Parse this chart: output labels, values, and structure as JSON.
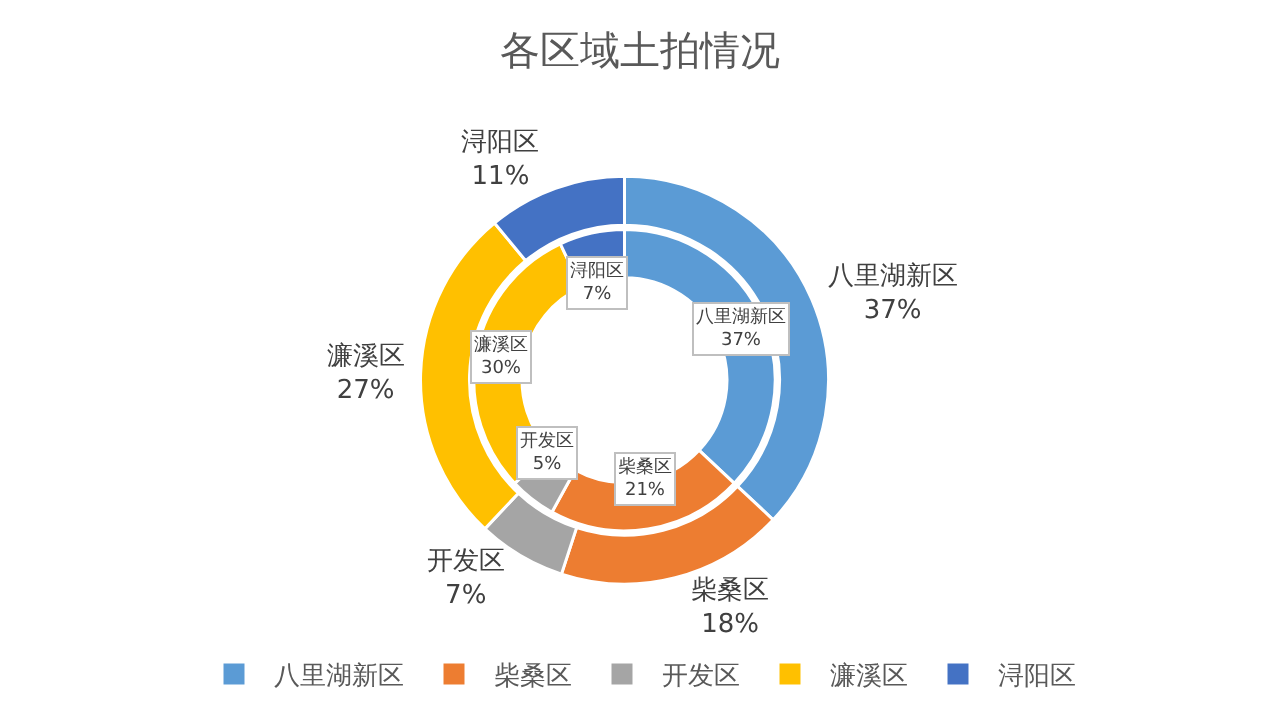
{
  "chart_data": {
    "type": "donut",
    "title": "各区域土拍情况",
    "categories": [
      "八里湖新区",
      "柴桑区",
      "开发区",
      "濂溪区",
      "浔阳区"
    ],
    "colors": [
      "#5b9bd5",
      "#ed7d31",
      "#a5a5a5",
      "#ffc000",
      "#4472c4"
    ],
    "series": [
      {
        "values": [
          37,
          18,
          7,
          27,
          11
        ],
        "value_labels": [
          "37%",
          "18%",
          "7%",
          "27%",
          "11%"
        ]
      },
      {
        "values": [
          37,
          21,
          5,
          30,
          7
        ],
        "value_labels": [
          "37%",
          "21%",
          "5%",
          "30%",
          "7%"
        ]
      }
    ],
    "legend": "bottom"
  }
}
